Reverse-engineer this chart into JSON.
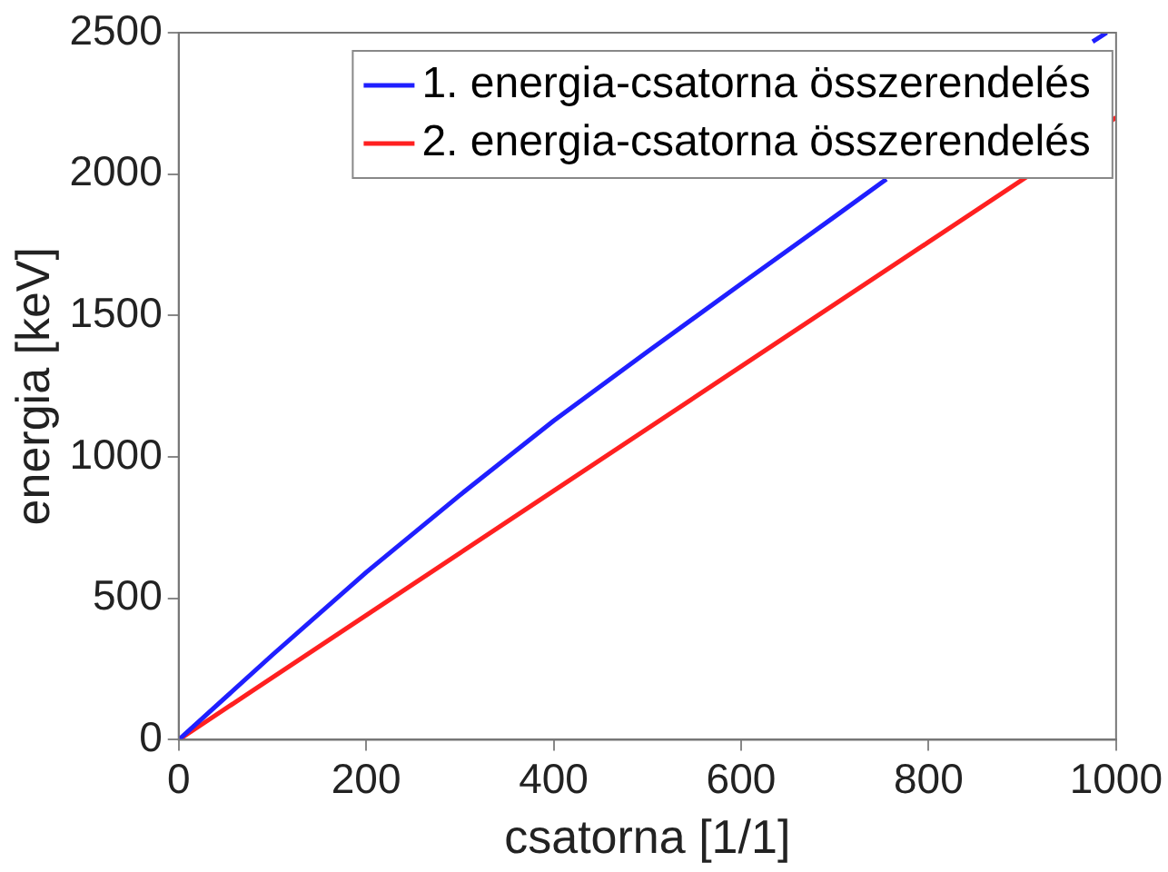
{
  "chart_data": {
    "type": "line",
    "xlabel": "csatorna [1/1]",
    "ylabel": "energia [keV]",
    "xlim": [
      0,
      1000
    ],
    "ylim": [
      0,
      2500
    ],
    "xticks": [
      0,
      200,
      400,
      600,
      800,
      1000
    ],
    "yticks": [
      0,
      500,
      1000,
      1500,
      2000,
      2500
    ],
    "grid": false,
    "legend": "top right",
    "marker": "none",
    "line_style": "solid",
    "series": [
      {
        "name": "1. energia-csatorna összerendelés",
        "color": "#1f1fff",
        "x": [
          0,
          100,
          200,
          300,
          400,
          500,
          600,
          700,
          755,
          800,
          900,
          975,
          990
        ],
        "values": [
          0,
          300,
          592,
          865,
          1128,
          1372,
          1612,
          1850,
          1982,
          null,
          null,
          2468,
          2500
        ]
      },
      {
        "name": "2. energia-csatorna összerendelés",
        "color": "#ff2020",
        "x": [
          0,
          200,
          400,
          600,
          800,
          1000
        ],
        "values": [
          0,
          440,
          880,
          1320,
          1760,
          2200
        ]
      }
    ]
  }
}
